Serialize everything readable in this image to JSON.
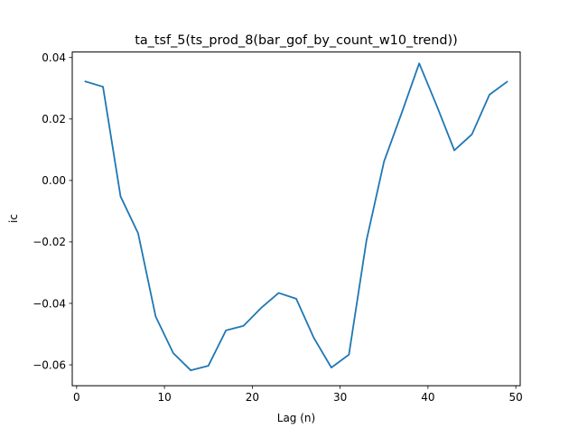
{
  "chart_data": {
    "type": "line",
    "title": "ta_tsf_5(ts_prod_8(bar_gof_by_count_w10_trend))",
    "xlabel": "Lag (n)",
    "ylabel": "ic",
    "xlim": [
      -0.5,
      50.5
    ],
    "ylim": [
      -0.0668,
      0.0418
    ],
    "xticks": [
      0,
      10,
      20,
      30,
      40,
      50
    ],
    "yticks": [
      -0.06,
      -0.04,
      -0.02,
      0.0,
      0.02,
      0.04
    ],
    "xtick_labels": [
      "0",
      "10",
      "20",
      "30",
      "40",
      "50"
    ],
    "ytick_labels": [
      "−0.06",
      "−0.04",
      "−0.02",
      "0.00",
      "0.02",
      "0.04"
    ],
    "grid": false,
    "series": [
      {
        "color": "#1f77b4",
        "x": [
          1,
          3,
          5,
          7,
          9,
          11,
          13,
          15,
          17,
          19,
          21,
          23,
          25,
          27,
          29,
          31,
          33,
          35,
          37,
          39,
          41,
          43,
          45,
          47,
          49
        ],
        "y": [
          0.0322,
          0.0305,
          -0.0052,
          -0.0172,
          -0.0443,
          -0.0562,
          -0.0618,
          -0.0603,
          -0.0488,
          -0.0473,
          -0.0415,
          -0.0366,
          -0.0385,
          -0.0512,
          -0.0609,
          -0.0567,
          -0.0195,
          0.0062,
          0.0219,
          0.0381,
          0.0243,
          0.0098,
          0.015,
          0.0279,
          0.0321
        ]
      }
    ]
  }
}
